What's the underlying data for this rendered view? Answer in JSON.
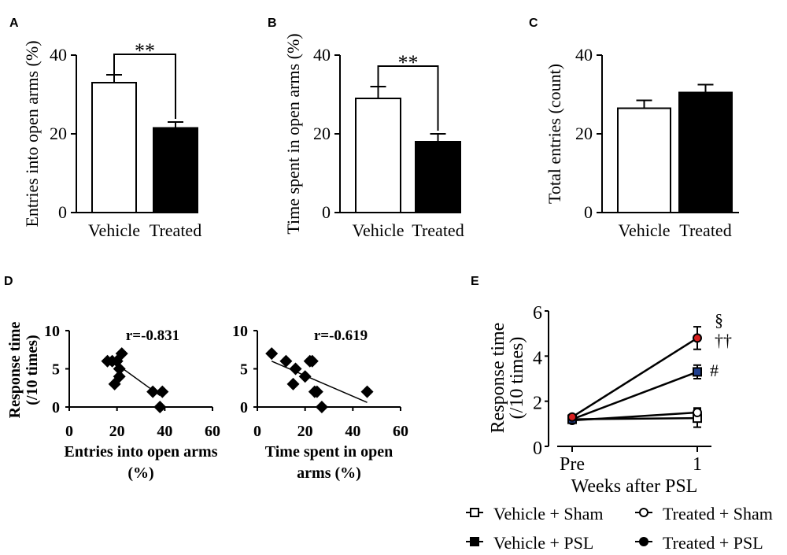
{
  "chart_data": [
    {
      "panel": "A",
      "type": "bar",
      "categories": [
        "Vehicle",
        "Treated"
      ],
      "values": [
        33,
        21.5
      ],
      "errors": [
        2,
        1.5
      ],
      "fills": [
        "#ffffff",
        "#000000"
      ],
      "ylabel": "Entries into open arms (%)",
      "ylim": [
        0,
        40
      ],
      "yticks": [
        "0",
        "20",
        "40"
      ],
      "significance": "**"
    },
    {
      "panel": "B",
      "type": "bar",
      "categories": [
        "Vehicle",
        "Treated"
      ],
      "values": [
        29,
        18
      ],
      "errors": [
        3,
        2
      ],
      "fills": [
        "#ffffff",
        "#000000"
      ],
      "ylabel": "Time spent in open arms (%)",
      "ylim": [
        0,
        40
      ],
      "yticks": [
        "0",
        "20",
        "40"
      ],
      "significance": "**"
    },
    {
      "panel": "C",
      "type": "bar",
      "categories": [
        "Vehicle",
        "Treated"
      ],
      "values": [
        26.5,
        30.5
      ],
      "errors": [
        2,
        2
      ],
      "fills": [
        "#ffffff",
        "#000000"
      ],
      "ylabel": "Total entries (count)",
      "ylim": [
        0,
        40
      ],
      "yticks": [
        "0",
        "20",
        "40"
      ],
      "significance": ""
    },
    {
      "panel": "D",
      "type": "scatter",
      "annotation": "r=-0.831",
      "xlabel": [
        "Entries into open arms",
        "(%)"
      ],
      "ylabel": [
        "Response time",
        "(/10 times)"
      ],
      "xlim": [
        0,
        60
      ],
      "ylim": [
        0,
        10
      ],
      "xticks": [
        "0",
        "20",
        "40",
        "60"
      ],
      "yticks": [
        "0",
        "5",
        "10"
      ],
      "x": [
        16,
        18,
        20,
        21,
        22,
        19,
        21,
        35,
        39,
        38
      ],
      "y": [
        6,
        6,
        6,
        5,
        7,
        3,
        4,
        2,
        2,
        0
      ],
      "fit": [
        [
          19,
          5.8
        ],
        [
          38,
          1.5
        ]
      ]
    },
    {
      "panel": "D2",
      "type": "scatter",
      "annotation": "r=-0.619",
      "xlabel": [
        "Time spent in open",
        "arms (%)"
      ],
      "xlim": [
        0,
        60
      ],
      "ylim": [
        0,
        10
      ],
      "xticks": [
        "0",
        "20",
        "40",
        "60"
      ],
      "yticks": [
        "0",
        "5",
        "10"
      ],
      "x": [
        6,
        12,
        16,
        15,
        20,
        22,
        23,
        24,
        25,
        27,
        46
      ],
      "y": [
        7,
        6,
        5,
        3,
        4,
        6,
        6,
        2,
        2,
        0,
        2
      ],
      "fit": [
        [
          6,
          6
        ],
        [
          46,
          0.6
        ]
      ]
    },
    {
      "panel": "E",
      "type": "line",
      "categories": [
        "Pre",
        "1"
      ],
      "xlabel": "Weeks after PSL",
      "ylabel": [
        "Response time",
        "(/10 times)"
      ],
      "ylim": [
        0,
        6
      ],
      "yticks": [
        "0",
        "2",
        "4",
        "6"
      ],
      "series": [
        {
          "name": "Vehicle + Sham",
          "marker": "square",
          "fill": "#ffffff",
          "values": [
            1.2,
            1.25
          ],
          "errors": [
            0.1,
            0.4
          ]
        },
        {
          "name": "Treated + Sham",
          "marker": "circle",
          "fill": "#ffffff",
          "values": [
            1.15,
            1.5
          ],
          "errors": [
            0.1,
            0.2
          ]
        },
        {
          "name": "Vehicle + PSL",
          "marker": "square",
          "fill": "#1f3f8f",
          "legend_fill": "#000000",
          "values": [
            1.2,
            3.3
          ],
          "errors": [
            0.1,
            0.3
          ]
        },
        {
          "name": "Treated + PSL",
          "marker": "circle",
          "fill": "#d81f1f",
          "legend_fill": "#000000",
          "values": [
            1.3,
            4.8
          ],
          "errors": [
            0.1,
            0.5
          ]
        }
      ],
      "annotations": [
        "§",
        "††",
        "#"
      ]
    }
  ],
  "panel_labels": [
    "A",
    "B",
    "C",
    "D",
    "E"
  ]
}
